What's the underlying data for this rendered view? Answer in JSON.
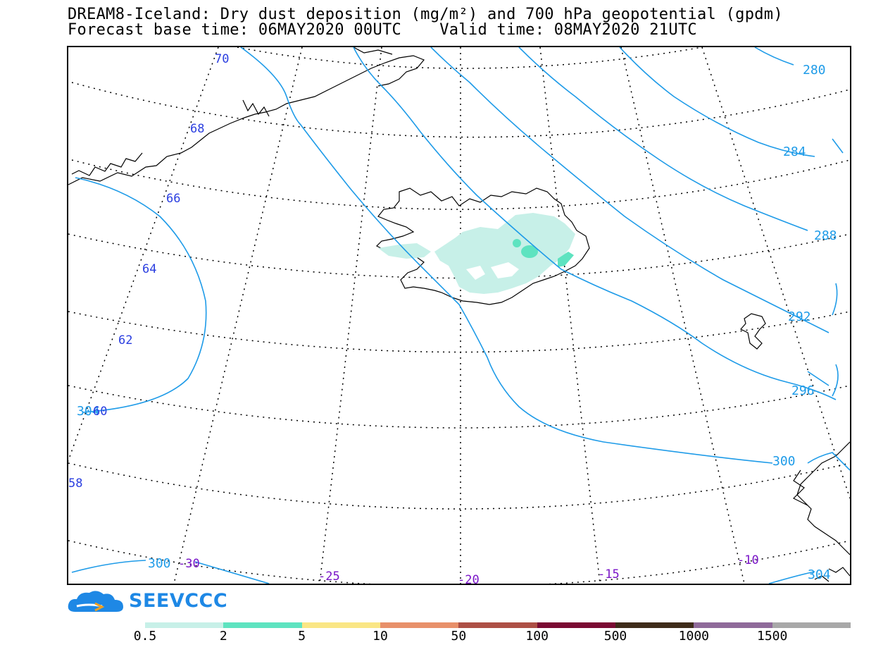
{
  "title": {
    "line1": "DREAM8-Iceland: Dry dust deposition (mg/m²) and 700 hPa geopotential (gpdm)",
    "line2": "Forecast base time: 06MAY2020 00UTC    Valid time: 08MAY2020 21UTC"
  },
  "latitude_labels": [
    "70",
    "68",
    "66",
    "64",
    "62",
    "60",
    "58"
  ],
  "longitude_labels": [
    "-30",
    "-25",
    "-20",
    "-15",
    "-10"
  ],
  "contour_labels": [
    "280",
    "284",
    "288",
    "292",
    "296",
    "300",
    "304",
    "300",
    "304"
  ],
  "logo": {
    "text": "SEEVCCC",
    "icon": "cloud-arrow-icon"
  },
  "legend": {
    "labels": [
      "0.5",
      "2",
      "5",
      "10",
      "50",
      "100",
      "500",
      "1000",
      "1500"
    ],
    "colors": [
      "#c7f0e8",
      "#5ee3c0",
      "#fae685",
      "#e8906a",
      "#ad4f45",
      "#7a0a33",
      "#3e2b1a",
      "#8f6a9a",
      "#a8a8a8"
    ]
  },
  "colors": {
    "contour": "#1e9be8",
    "lat_label": "#2a3ee0",
    "lon_label": "#7a15c8"
  }
}
